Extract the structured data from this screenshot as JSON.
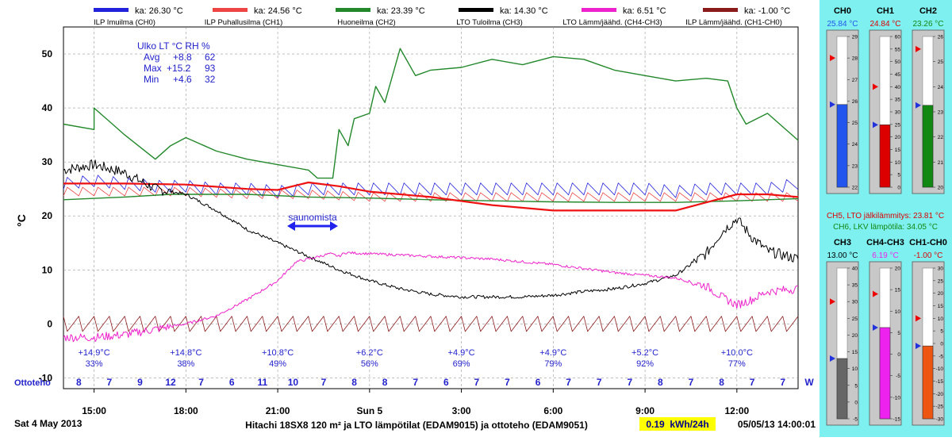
{
  "legend": [
    {
      "label": "ILP Imuilma (CH0)",
      "avg": "ka: 26.30 °C",
      "color": "#2222dd"
    },
    {
      "label": "ILP Puhallusilma (CH1)",
      "avg": "ka: 24.56 °C",
      "color": "#ee4444"
    },
    {
      "label": "Huoneilma (CH2)",
      "avg": "ka: 23.39 °C",
      "color": "#22882a"
    },
    {
      "label": "LTO Tuloilma (CH3)",
      "avg": "ka: 14.30 °C",
      "color": "#000000"
    },
    {
      "label": "LTO Lämm/jäähd. (CH4-CH3)",
      "avg": "ka: 6.51 °C",
      "color": "#ee22cc"
    },
    {
      "label": "ILP Lämm/jäähd. (CH1-CH0)",
      "avg": "ka: -1.00 °C",
      "color": "#8b1a1a"
    }
  ],
  "stats": {
    "header": "Ulko LT °C RH %",
    "rows": [
      {
        "label": "Avg",
        "t": "+8.8",
        "rh": "62"
      },
      {
        "label": "Max",
        "t": "+15.2",
        "rh": "93"
      },
      {
        "label": "Min",
        "t": "+4.6",
        "rh": "32"
      }
    ]
  },
  "annotation": "saunomista",
  "ottoteho": {
    "label": "Ottoteho",
    "values": [
      "8",
      "7",
      "9",
      "12",
      "7",
      "6",
      "11",
      "10",
      "7",
      "8",
      "8",
      "7",
      "6",
      "7",
      "7",
      "6",
      "7",
      "7",
      "7",
      "8",
      "7",
      "8",
      "7",
      "7"
    ],
    "unit": "W"
  },
  "outdoor": [
    {
      "t": "+14.9°C",
      "rh": "33%"
    },
    {
      "t": "+14.8°C",
      "rh": "38%"
    },
    {
      "t": "+10.8°C",
      "rh": "49%"
    },
    {
      "t": "+6.2°C",
      "rh": "56%"
    },
    {
      "t": "+4.9°C",
      "rh": "69%"
    },
    {
      "t": "+4.9°C",
      "rh": "79%"
    },
    {
      "t": "+5.2°C",
      "rh": "92%"
    },
    {
      "t": "+10.0°C",
      "rh": "77%"
    }
  ],
  "footer": {
    "date": "Sat 4 May 2013",
    "title": "Hitachi 18SX8 120 m² ja LTO lämpötilat (EDAM9015) ja ottoteho (EDAM9051)",
    "energy": "0.19  kWh/24h",
    "timestamp": "05/05/13 14:00:01"
  },
  "gauges": [
    {
      "name": "CH0",
      "value": "25.84 °C",
      "color": "#2255ee",
      "min": 22,
      "max": 29,
      "v": 25.84,
      "marker": 28,
      "ticks": [
        22,
        23,
        24,
        25,
        26,
        27,
        28,
        29
      ],
      "valcolor": "#2255ee"
    },
    {
      "name": "CH1",
      "value": "24.84 °C",
      "color": "#dd0000",
      "min": 0,
      "max": 60,
      "v": 24.84,
      "marker": 40,
      "ticks": [
        0,
        5,
        10,
        15,
        20,
        25,
        30,
        35,
        40,
        45,
        50,
        55,
        60
      ],
      "valcolor": "#dd0000"
    },
    {
      "name": "CH2",
      "value": "23.26 °C",
      "color": "#118811",
      "min": 20,
      "max": 26,
      "v": 23.26,
      "marker": 25.5,
      "ticks": [
        20,
        21,
        22,
        23,
        24,
        25,
        26
      ],
      "valcolor": "#118811"
    },
    {
      "name": "CH3",
      "value": "13.00 °C",
      "color": "#666666",
      "min": -5,
      "max": 40,
      "v": 13,
      "marker": 30,
      "ticks": [
        -5,
        0,
        5,
        10,
        15,
        20,
        25,
        30,
        35,
        40
      ],
      "valcolor": "#000000"
    },
    {
      "name": "CH4-CH3",
      "value": "6.19 °C",
      "color": "#ee22ee",
      "min": -15,
      "max": 20,
      "v": 6.19,
      "marker": 14,
      "ticks": [
        -15,
        -10,
        -5,
        0,
        5,
        10,
        15,
        20
      ],
      "valcolor": "#ee22ee"
    },
    {
      "name": "CH1-CH0",
      "value": "-1.00 °C",
      "color": "#ee5511",
      "min": -30,
      "max": 30,
      "v": -1,
      "marker": 10,
      "ticks": [
        -30,
        -25,
        -20,
        -15,
        -10,
        -5,
        0,
        5,
        10,
        15,
        20,
        25,
        30
      ],
      "valcolor": "#dd0000"
    }
  ],
  "side_info": [
    {
      "text": "CH5, LTO jälkilämmitys: 23.81 °C",
      "color": "#dd0000"
    },
    {
      "text": "CH6, LKV lämpötila: 34.05 °C",
      "color": "#118811"
    }
  ],
  "chart_data": {
    "type": "line",
    "ylabel": "°C",
    "ylim": [
      -12,
      55
    ],
    "xlim": [
      14.0,
      38.0
    ],
    "yticks": [
      -10,
      0,
      10,
      20,
      30,
      40,
      50
    ],
    "xticks": [
      {
        "x": 15,
        "label": "15:00"
      },
      {
        "x": 18,
        "label": "18:00"
      },
      {
        "x": 21,
        "label": "21:00"
      },
      {
        "x": 24,
        "label": "Sun 5"
      },
      {
        "x": 27,
        "label": "3:00"
      },
      {
        "x": 30,
        "label": "6:00"
      },
      {
        "x": 33,
        "label": "9:00"
      },
      {
        "x": 36,
        "label": "12:00"
      }
    ],
    "series": [
      {
        "name": "ILP Imuilma (CH0)",
        "color": "#2222dd",
        "width": 0.8,
        "sawtooth": {
          "period": 0.5,
          "amp": 2.2
        },
        "points": [
          [
            14,
            26
          ],
          [
            15,
            26.5
          ],
          [
            16,
            26
          ],
          [
            17,
            25.5
          ],
          [
            18,
            25.5
          ],
          [
            19,
            25
          ],
          [
            20,
            25
          ],
          [
            21,
            24.5
          ],
          [
            22,
            25
          ],
          [
            23,
            25
          ],
          [
            24,
            25
          ],
          [
            25,
            25
          ],
          [
            26,
            25
          ],
          [
            27,
            25
          ],
          [
            28,
            25
          ],
          [
            29,
            25
          ],
          [
            30,
            25
          ],
          [
            31,
            25
          ],
          [
            32,
            25
          ],
          [
            33,
            25
          ],
          [
            34,
            24.5
          ],
          [
            35,
            25
          ],
          [
            36,
            25
          ],
          [
            37,
            25
          ],
          [
            38,
            26
          ]
        ]
      },
      {
        "name": "ILP Puhallusilma (CH1)",
        "color": "#ee4444",
        "width": 0.8,
        "sawtooth": {
          "period": 0.5,
          "amp": 1.6
        },
        "points": [
          [
            14,
            24.5
          ],
          [
            16,
            24.5
          ],
          [
            18,
            24.5
          ],
          [
            20,
            24
          ],
          [
            22,
            24
          ],
          [
            24,
            23.5
          ],
          [
            26,
            23.5
          ],
          [
            28,
            23.5
          ],
          [
            30,
            23.5
          ],
          [
            32,
            23.5
          ],
          [
            34,
            23.5
          ],
          [
            36,
            23.5
          ],
          [
            38,
            23.5
          ]
        ]
      },
      {
        "name": "Huoneilma (CH2)",
        "color": "#22882a",
        "width": 1.4,
        "points": [
          [
            14,
            23
          ],
          [
            16,
            23.5
          ],
          [
            17.5,
            24
          ],
          [
            20,
            24
          ],
          [
            22,
            23.5
          ],
          [
            24,
            23.3
          ],
          [
            26,
            23
          ],
          [
            28,
            22.8
          ],
          [
            30,
            22.6
          ],
          [
            32,
            22.5
          ],
          [
            34,
            22.5
          ],
          [
            36,
            22.8
          ],
          [
            38,
            23.2
          ]
        ]
      },
      {
        "name": "LTO Tuloilma (CH3)",
        "color": "#000000",
        "width": 1.0,
        "noise": 1.0,
        "points": [
          [
            14,
            28.5
          ],
          [
            15,
            29.5
          ],
          [
            16,
            28
          ],
          [
            17,
            25
          ],
          [
            18,
            24
          ],
          [
            19,
            21
          ],
          [
            20,
            17.5
          ],
          [
            21,
            15
          ],
          [
            22,
            12.5
          ],
          [
            23,
            10
          ],
          [
            24,
            8
          ],
          [
            25,
            6.5
          ],
          [
            26,
            5.5
          ],
          [
            27,
            5
          ],
          [
            28,
            5
          ],
          [
            29,
            5
          ],
          [
            30,
            5.3
          ],
          [
            31,
            6
          ],
          [
            32,
            6.5
          ],
          [
            33,
            7.5
          ],
          [
            34,
            9
          ],
          [
            35,
            13
          ],
          [
            35.5,
            17
          ],
          [
            36,
            19.5
          ],
          [
            36.5,
            16
          ],
          [
            37,
            13.5
          ],
          [
            38,
            12
          ]
        ]
      },
      {
        "name": "LTO Lämm/jäähd. (CH4-CH3)",
        "color": "#ee22cc",
        "width": 1.0,
        "noise": 0.8,
        "points": [
          [
            14,
            -2.5
          ],
          [
            15,
            -2.5
          ],
          [
            16,
            -2
          ],
          [
            17,
            -1
          ],
          [
            18,
            0
          ],
          [
            19,
            1.5
          ],
          [
            20,
            4.5
          ],
          [
            21,
            8
          ],
          [
            21.6,
            11.5
          ],
          [
            22,
            12
          ],
          [
            22.7,
            13
          ],
          [
            23,
            12.5
          ],
          [
            23.2,
            13.2
          ],
          [
            24,
            13
          ],
          [
            26,
            12.5
          ],
          [
            28,
            12
          ],
          [
            30,
            11
          ],
          [
            32,
            9.5
          ],
          [
            34,
            8.5
          ],
          [
            35,
            7
          ],
          [
            35.5,
            5
          ],
          [
            36,
            3.5
          ],
          [
            36.5,
            4.5
          ],
          [
            37,
            6
          ],
          [
            38,
            6.5
          ]
        ]
      },
      {
        "name": "ILP Lämm/jäähd. (CH1-CH0)",
        "color": "#8b1a1a",
        "width": 0.8,
        "sawtooth": {
          "period": 0.5,
          "amp": -2.8
        },
        "points": [
          [
            14,
            0
          ],
          [
            38,
            0
          ]
        ]
      },
      {
        "name": "CH5 LTO jälkilämmitys",
        "color": "#ee1111",
        "width": 2.2,
        "points": [
          [
            14,
            26
          ],
          [
            16,
            26
          ],
          [
            18,
            25.8
          ],
          [
            20,
            25
          ],
          [
            21,
            24.8
          ],
          [
            22,
            26.2
          ],
          [
            23,
            25.5
          ],
          [
            24,
            24.5
          ],
          [
            26,
            23.5
          ],
          [
            28,
            22
          ],
          [
            30,
            21
          ],
          [
            32,
            21
          ],
          [
            34,
            21
          ],
          [
            35,
            22.5
          ],
          [
            36,
            24
          ],
          [
            37,
            24
          ],
          [
            38,
            23.5
          ]
        ]
      },
      {
        "name": "CH6 LKV lämpötila",
        "color": "#22882a",
        "width": 1.4,
        "points": [
          [
            14,
            37
          ],
          [
            15,
            36
          ],
          [
            15,
            40
          ],
          [
            16,
            35
          ],
          [
            17,
            30.5
          ],
          [
            17.5,
            33
          ],
          [
            18,
            34.5
          ],
          [
            19,
            32
          ],
          [
            20,
            30.5
          ],
          [
            21,
            29.5
          ],
          [
            22,
            28.5
          ],
          [
            22.3,
            27
          ],
          [
            22.8,
            27
          ],
          [
            23,
            36
          ],
          [
            23.3,
            33
          ],
          [
            23.5,
            38
          ],
          [
            24,
            39
          ],
          [
            24.2,
            44
          ],
          [
            24.5,
            41
          ],
          [
            25,
            51
          ],
          [
            25.5,
            46
          ],
          [
            26,
            47
          ],
          [
            27,
            47.5
          ],
          [
            28,
            49
          ],
          [
            29,
            48
          ],
          [
            30,
            49.5
          ],
          [
            31,
            49
          ],
          [
            32,
            47
          ],
          [
            33,
            46
          ],
          [
            34,
            45
          ],
          [
            35,
            45.5
          ],
          [
            35.7,
            45
          ],
          [
            36,
            40
          ],
          [
            36.3,
            37
          ],
          [
            37,
            39
          ],
          [
            38,
            34
          ]
        ]
      }
    ]
  }
}
